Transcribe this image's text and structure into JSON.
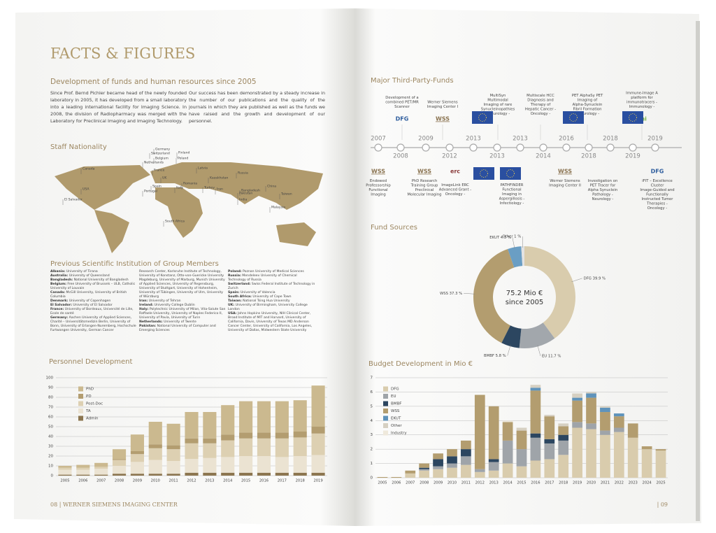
{
  "left_page": {
    "title": "FACTS & FIGURES",
    "section_title": "Development of funds and human resources since 2005",
    "paragraphs": [
      "Since Prof. Bernd Pichler became head of the newly founded laboratory in 2005, it has developed from a small laboratory into a leading international facility for Imaging Science. In 2008, the division of Radiopharmacy was merged with the Laboratory for Preclinical Imaging and Imaging Technology.",
      "Our success has been demonstrated by a steady increase in the number of our publications and the quality of the journals in which they are published as well as the funds we have raised and the growth and development of our personnel."
    ],
    "map_title": "Staff Nationality",
    "map_labels": [
      "Canada",
      "USA",
      "El Salvador",
      "Germany",
      "Switzerland",
      "Belgium",
      "Netherlands",
      "France",
      "Finland",
      "Poland",
      "Latvia",
      "Spain",
      "Portugal",
      "UK",
      "Italy",
      "Romania",
      "Turkey",
      "Kazakhstan",
      "Russia",
      "Iran",
      "Pakistan",
      "India",
      "Bangladesh",
      "China",
      "Taiwan",
      "Malaysia",
      "South Africa"
    ],
    "institutions_title": "Previous Scientific Institution of Group Members",
    "institutions": [
      [
        {
          "country": "Albania:",
          "text": "University of Tirana"
        },
        {
          "country": "Australia:",
          "text": "University of Queensland"
        },
        {
          "country": "Bangladesh:",
          "text": "National University of Bangladesh"
        },
        {
          "country": "Belgium:",
          "text": "Free University of Brussels – ULB, Catholic University of Louvain"
        },
        {
          "country": "Canada:",
          "text": "McGill University, University of British Columbia"
        },
        {
          "country": "Denmark:",
          "text": "University of Copenhagen"
        },
        {
          "country": "El Salvador:",
          "text": "University of El Salvador"
        },
        {
          "country": "France:",
          "text": "University of Bordeaux, Université de Lille, Ecole de santé"
        },
        {
          "country": "Germany:",
          "text": "Aachen University of Applied Sciences, Charité – Universitätsmedizin Berlin, University of Bonn, University of Erlangen-Nuremberg, Hochschule Furtwangen University, German Cancer"
        }
      ],
      [
        {
          "text": "Research Center, Karlsruhe Institute of Technology, University of Konstanz, Otto-von-Guericke University Magdeburg, University of Marburg, Munich University of Applied Sciences, University of Regensburg, University of Stuttgart, University of Hohenheim, University of Tübingen, University of Ulm, University of Würzburg"
        },
        {
          "country": "Iran:",
          "text": "University of Tehran"
        },
        {
          "country": "Ireland:",
          "text": "University College Dublin"
        },
        {
          "country": "Italy:",
          "text": "Polytechnic University of Milan, Vita-Salute San Raffaele University, University of Naples Federico II, University of Pavia, University of Turin"
        },
        {
          "country": "Netherlands:",
          "text": "University of Twente"
        },
        {
          "country": "Pakistan:",
          "text": "National University of Computer and Emerging Sciences"
        }
      ],
      [
        {
          "country": "Poland:",
          "text": "Poznan University of Medical Sciences"
        },
        {
          "country": "Russia:",
          "text": "Mendeleev University of Chemical Technology of Russia"
        },
        {
          "country": "Switzerland:",
          "text": "Swiss Federal Institute of Technology in Zurich"
        },
        {
          "country": "Spain:",
          "text": "University of Valencia"
        },
        {
          "country": "South Africa:",
          "text": "University of Cape Town"
        },
        {
          "country": "Taiwan:",
          "text": "National Tsing Hua University"
        },
        {
          "country": "UK:",
          "text": "University of Birmingham, University College London"
        },
        {
          "country": "USA:",
          "text": "Johns Hopkins University, NIH Clinical Center, Broad Institute of MIT and Harvard, University of California, Davis, University of Texas MD Anderson Cancer Center, University of California, Los Angeles, University of Dallas, Midwestern State University"
        }
      ]
    ],
    "footer": "08 | WERNER SIEMENS IMAGING CENTER"
  },
  "right_page": {
    "timeline_title": "Major Third-Party-Funds",
    "timeline_years": [
      "2007",
      "2008",
      "2009",
      "2012",
      "2013",
      "2013",
      "2013",
      "2014",
      "2016",
      "2018",
      "2018",
      "2019",
      "2019"
    ],
    "events_top": [
      {
        "text": "Development of a combined PET/MR Scanner",
        "logo": "DFG"
      },
      {
        "text": "Werner Siemens Imaging Center I",
        "logo": "WSS"
      },
      {
        "text": "MultiSyn Multimodal Imaging of rare Synucleinopathies - Neurology -"
      },
      {
        "text": "Multiscale HCC Diagnosis and Therapy of Hepatic Cancer - Oncology -"
      },
      {
        "text": "PET AlphaSy PET Imaging of Alpha-Synuclein Fibril Formation - Neurology -"
      },
      {
        "text": "Immune-Image A platform for immunotracers - Immunology -",
        "logo": "imi"
      }
    ],
    "events_bottom": [
      {
        "text": "Endowed Professorship Functional Imaging",
        "logo": "WSS"
      },
      {
        "text": "PhD Research Training Group Preclinical Molecular Imaging",
        "logo": "WSS"
      },
      {
        "text": "ImageLink ERC Advanced Grant - Oncology -",
        "logo": "erc"
      },
      {
        "text": "PATHFINDER Functional Imaging in Aspergillosis - Infectiology -"
      },
      {
        "text": "Werner Siemens Imaging Center II",
        "logo": "WSS"
      },
      {
        "text": "Investigation on PET Tracer for Alpha Synuclein Pathology - Neurology -"
      },
      {
        "text": "iFIT – Excellence Cluster Image-Guided and Functionally Instructed Tumor Therapies - Oncology -",
        "logo": "DFG"
      }
    ],
    "footer": "| 09"
  },
  "chart_data": [
    {
      "type": "stacked-bar",
      "title": "Personnel Development",
      "categories": [
        "2005",
        "2006",
        "2007",
        "2008",
        "2009",
        "2010",
        "2011",
        "2012",
        "2013",
        "2014",
        "2015",
        "2016",
        "2017",
        "2018",
        "2019"
      ],
      "series": [
        {
          "name": "PhD",
          "color": "#cbb98f",
          "values": [
            2,
            3,
            4,
            10,
            17,
            23,
            22,
            27,
            27,
            30,
            32,
            32,
            32,
            32,
            42
          ]
        },
        {
          "name": "PD",
          "color": "#b39d70",
          "values": [
            0,
            0,
            0,
            1,
            3,
            4,
            4,
            5,
            5,
            6,
            6,
            6,
            6,
            6,
            7
          ]
        },
        {
          "name": "Post-Doc",
          "color": "#ddd0b2",
          "values": [
            2,
            2,
            2,
            6,
            8,
            12,
            12,
            16,
            15,
            17,
            18,
            18,
            19,
            19,
            22
          ]
        },
        {
          "name": "TA",
          "color": "#ebe3d2",
          "values": [
            5,
            5,
            6,
            8,
            12,
            14,
            13,
            14,
            15,
            16,
            17,
            17,
            16,
            17,
            18
          ]
        },
        {
          "name": "Admin",
          "color": "#8c7650",
          "values": [
            1,
            1,
            1,
            2,
            2,
            2,
            2,
            3,
            3,
            3,
            3,
            3,
            3,
            3,
            3
          ]
        }
      ],
      "ylim": [
        0,
        100
      ],
      "yticks": [
        0,
        10,
        20,
        30,
        40,
        50,
        60,
        70,
        80,
        90,
        100
      ],
      "grid": true
    },
    {
      "type": "donut",
      "title": "Fund Sources",
      "center_label": [
        "75.2 Mio €",
        "since 2005"
      ],
      "categories": [
        "DFG",
        "EU",
        "BMBF",
        "WSS",
        "EKUT",
        "Other"
      ],
      "values": [
        39.9,
        11.7,
        5.8,
        37.3,
        4.3,
        1
      ],
      "value_labels": [
        "DFG 39.9 %",
        "EU 11.7 %",
        "BMBF 5.8 %",
        "WSS 37.3 %",
        "EKUT 4.3 %",
        "Other 1 %"
      ],
      "colors": [
        "#d9ccad",
        "#a2a7ac",
        "#2c4660",
        "#b39d6f",
        "#6a9ec4",
        "#e3e3e3"
      ]
    },
    {
      "type": "stacked-bar",
      "title": "Budget Development in Mio €",
      "categories": [
        "2005",
        "2006",
        "2007",
        "2008",
        "2009",
        "2010",
        "2011",
        "2012",
        "2013",
        "2014",
        "2015",
        "2016",
        "2017",
        "2018",
        "2019",
        "2020",
        "2021",
        "2022",
        "2023",
        "2024",
        "2025"
      ],
      "series": [
        {
          "name": "DFG",
          "color": "#d9ccad",
          "values": [
            0,
            0,
            0.3,
            0.5,
            0.6,
            0.7,
            0.9,
            0.4,
            0.5,
            1.0,
            0.8,
            1.2,
            1.3,
            1.6,
            3.5,
            3.4,
            3.0,
            3.2,
            2.8,
            2.0,
            1.9
          ]
        },
        {
          "name": "EU",
          "color": "#9fa4a9",
          "values": [
            0,
            0,
            0,
            0.1,
            0.2,
            0.3,
            0.6,
            0.2,
            0.6,
            1.6,
            1.2,
            1.6,
            1.1,
            1.0,
            0.4,
            0.4,
            0.3,
            0.3,
            0,
            0,
            0
          ]
        },
        {
          "name": "BMBF",
          "color": "#2c4660",
          "values": [
            0,
            0,
            0,
            0.1,
            0.5,
            0.5,
            0.5,
            0,
            0.2,
            0,
            0,
            0.3,
            0.3,
            0.4,
            0,
            0,
            0,
            0,
            0,
            0,
            0
          ]
        },
        {
          "name": "WSS",
          "color": "#b39d6f",
          "values": [
            0.05,
            0.05,
            0.2,
            0.3,
            0.4,
            0.5,
            0.6,
            5.2,
            3.7,
            1.3,
            1.3,
            3.0,
            1.6,
            0.6,
            1.5,
            1.8,
            1.3,
            0.8,
            1.0,
            0.2,
            0.1
          ]
        },
        {
          "name": "EKUT",
          "color": "#5f93bb",
          "values": [
            0,
            0,
            0,
            0,
            0,
            0,
            0,
            0,
            0,
            0,
            0,
            0.2,
            0,
            0,
            0.2,
            0.3,
            0.3,
            0.2,
            0,
            0,
            0
          ]
        },
        {
          "name": "Other",
          "color": "#d6d0c2",
          "values": [
            0,
            0,
            0,
            0,
            0,
            0,
            0,
            0,
            0,
            0,
            0.2,
            0.2,
            0.1,
            0.2,
            0.3,
            0.1,
            0.1,
            0,
            0,
            0,
            0
          ]
        },
        {
          "name": "Industry",
          "color": "#efe9dc",
          "values": [
            0,
            0,
            0,
            0,
            0,
            0,
            0,
            0,
            0,
            0.1,
            0,
            0,
            0,
            0,
            0,
            0,
            0,
            0,
            0,
            0,
            0
          ]
        }
      ],
      "ylim": [
        0,
        7
      ],
      "yticks": [
        0,
        1,
        2,
        3,
        4,
        5,
        6,
        7
      ],
      "grid": true
    }
  ]
}
